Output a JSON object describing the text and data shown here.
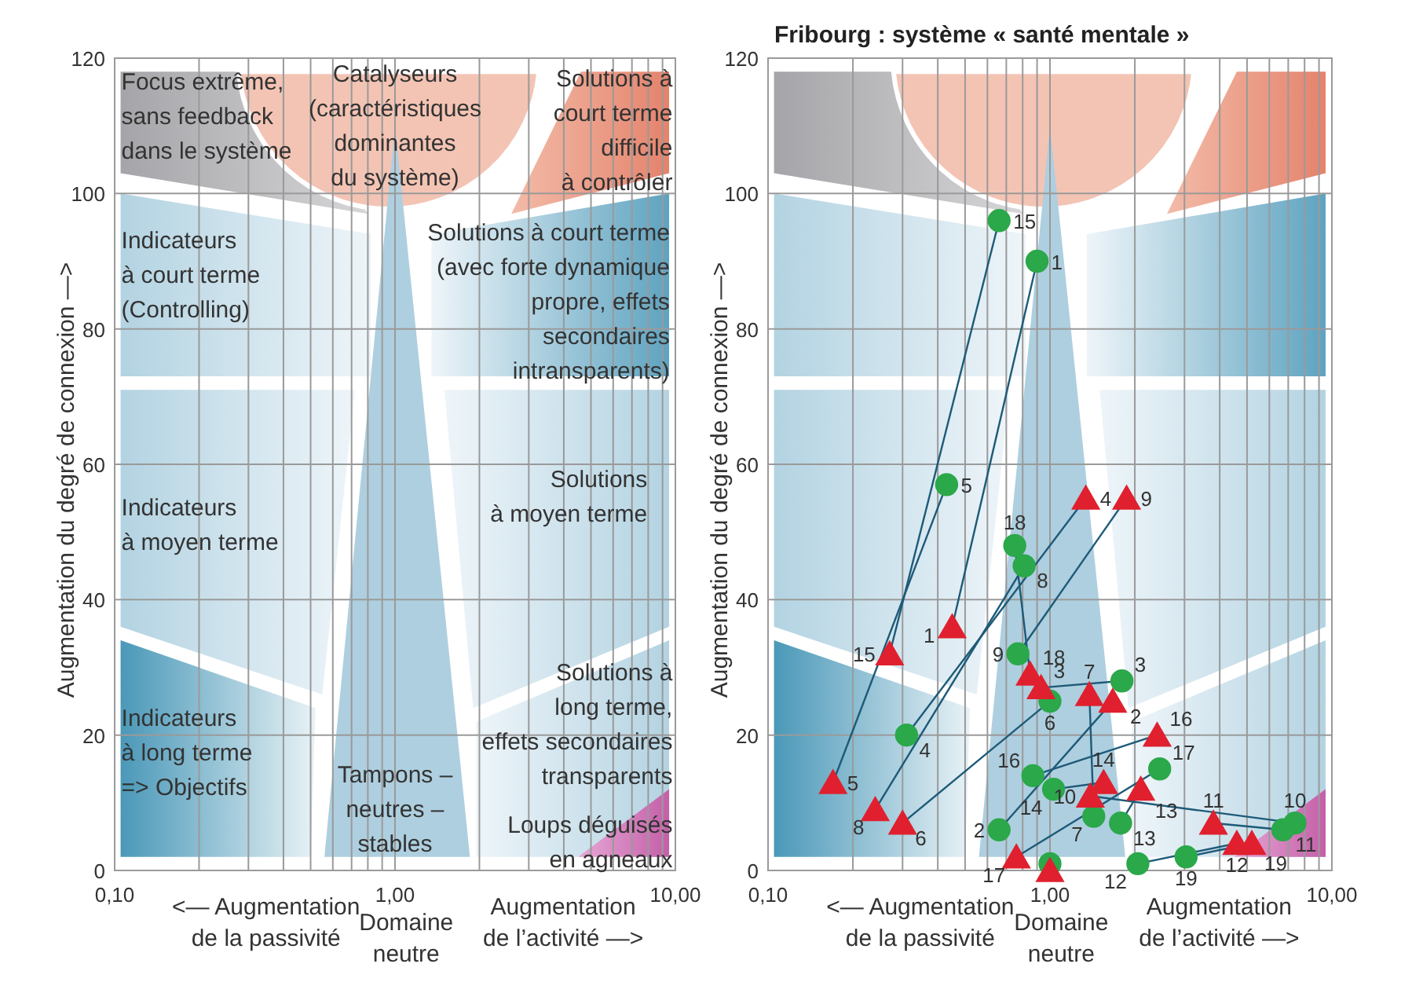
{
  "chart_data": [
    {
      "type": "scatter",
      "ylabel": "Augmentation du degré de connexion —>",
      "xlim": [
        0.1,
        10
      ],
      "ylim": [
        0,
        120
      ],
      "log": "x",
      "grid": true,
      "xticks": [
        {
          "value": 0.1,
          "label": "0,10"
        },
        {
          "value": 0.2,
          "label": null
        },
        {
          "value": 0.3,
          "label": null
        },
        {
          "value": 0.4,
          "label": null
        },
        {
          "value": 0.5,
          "label": null
        },
        {
          "value": 0.6,
          "label": null
        },
        {
          "value": 0.7,
          "label": null
        },
        {
          "value": 0.8,
          "label": null
        },
        {
          "value": 0.9,
          "label": null
        },
        {
          "value": 1,
          "label": "1,00"
        },
        {
          "value": 2,
          "label": null
        },
        {
          "value": 3,
          "label": null
        },
        {
          "value": 4,
          "label": null
        },
        {
          "value": 5,
          "label": null
        },
        {
          "value": 6,
          "label": null
        },
        {
          "value": 7,
          "label": null
        },
        {
          "value": 8,
          "label": null
        },
        {
          "value": 9,
          "label": null
        },
        {
          "value": 10,
          "label": "10,00"
        }
      ],
      "yticks": [
        0,
        20,
        40,
        60,
        80,
        100,
        120
      ],
      "annotations": [
        "Focus extrême,\nsans feedback\ndans le système",
        "Catalyseurs\n(caractéristiques\ndominantes\ndu système)",
        "Solutions à\ncourt terme\ndifficile\nà contrôler",
        "Indicateurs\nà court terme\n(Controlling)",
        "Solutions à court terme\n(avec forte dynamique\npropre, effets\nsecondaires\nintransparents)",
        "Indicateurs\nà moyen terme",
        "Solutions\nà moyen terme",
        "Indicateurs\nà long terme\n=> Objectifs",
        "Solutions à\nlong terme,\neffets secondaires\ntransparents",
        "Tampons –\nneutres –\nstables",
        "Loups déguisés\nen agneaux",
        "<— Augmentation\nde la passivité",
        "Domaine\nneutre",
        "Augmentation\nde l’activité —>"
      ]
    },
    {
      "type": "scatter",
      "title": "Fribourg : système « santé mentale »",
      "ylabel": "Augmentation du degré de connexion —>",
      "xlim": [
        0.1,
        10
      ],
      "ylim": [
        0,
        120
      ],
      "log": "x",
      "grid": true,
      "xticks": [
        {
          "value": 0.1,
          "label": "0,10"
        },
        {
          "value": 0.2,
          "label": null
        },
        {
          "value": 0.3,
          "label": null
        },
        {
          "value": 0.4,
          "label": null
        },
        {
          "value": 0.5,
          "label": null
        },
        {
          "value": 0.6,
          "label": null
        },
        {
          "value": 0.7,
          "label": null
        },
        {
          "value": 0.8,
          "label": null
        },
        {
          "value": 0.9,
          "label": null
        },
        {
          "value": 1,
          "label": "1,00"
        },
        {
          "value": 2,
          "label": null
        },
        {
          "value": 3,
          "label": null
        },
        {
          "value": 4,
          "label": null
        },
        {
          "value": 5,
          "label": null
        },
        {
          "value": 6,
          "label": null
        },
        {
          "value": 7,
          "label": null
        },
        {
          "value": 8,
          "label": null
        },
        {
          "value": 9,
          "label": null
        },
        {
          "value": 10,
          "label": "10,00"
        }
      ],
      "yticks": [
        0,
        20,
        40,
        60,
        80,
        100,
        120
      ],
      "series": [
        {
          "color": "#2aa84a",
          "marker": "circle",
          "x": [
            0.9,
            0.66,
            1.8,
            0.31,
            0.43,
            1.0,
            1.43,
            0.81,
            0.77,
            7.4,
            6.7,
            2.05,
            1.78,
            1.03,
            0.66,
            0.87,
            2.45,
            0.75,
            3.04,
            1.0
          ],
          "values": [
            90,
            6,
            28,
            20,
            57,
            25,
            8,
            45,
            32,
            7,
            6,
            1,
            7,
            12,
            96,
            14,
            15,
            48,
            2,
            1
          ]
        },
        {
          "color": "#e0202e",
          "marker": "triangle",
          "x": [
            0.45,
            1.67,
            0.93,
            1.34,
            0.17,
            0.3,
            1.38,
            0.24,
            1.87,
            1.39,
            3.8,
            4.6,
            2.1,
            1.55,
            0.27,
            2.4,
            0.76,
            0.85,
            5.2,
            1.0
          ],
          "values": [
            36,
            25,
            27,
            55,
            13,
            7,
            26,
            9,
            55,
            11,
            7,
            4,
            12,
            13,
            32,
            20,
            2,
            29,
            4,
            0
          ]
        }
      ],
      "annotations": [
        {
          "text": "1",
          "x": 0.9,
          "y": 90
        },
        {
          "text": "2",
          "x": 0.66,
          "y": 6
        },
        {
          "text": "3",
          "x": 1.8,
          "y": 28
        },
        {
          "text": "4",
          "x": 0.31,
          "y": 20
        },
        {
          "text": "5",
          "x": 0.43,
          "y": 57
        },
        {
          "text": "6",
          "x": 1.0,
          "y": 25
        },
        {
          "text": "7",
          "x": 1.43,
          "y": 8
        },
        {
          "text": "8",
          "x": 0.81,
          "y": 45
        },
        {
          "text": "9",
          "x": 0.77,
          "y": 32
        },
        {
          "text": "10",
          "x": 7.4,
          "y": 7
        },
        {
          "text": "11",
          "x": 6.7,
          "y": 6
        },
        {
          "text": "12",
          "x": 2.05,
          "y": 1
        },
        {
          "text": "13",
          "x": 1.78,
          "y": 7
        },
        {
          "text": "14",
          "x": 1.03,
          "y": 12
        },
        {
          "text": "15",
          "x": 0.66,
          "y": 96
        },
        {
          "text": "16",
          "x": 0.87,
          "y": 14
        },
        {
          "text": "17",
          "x": 2.45,
          "y": 15
        },
        {
          "text": "18",
          "x": 0.75,
          "y": 48
        },
        {
          "text": "19",
          "x": 3.04,
          "y": 2
        },
        {
          "text": "1",
          "x": 0.45,
          "y": 36
        },
        {
          "text": "2",
          "x": 1.67,
          "y": 25
        },
        {
          "text": "3",
          "x": 0.93,
          "y": 27
        },
        {
          "text": "4",
          "x": 1.34,
          "y": 55
        },
        {
          "text": "5",
          "x": 0.17,
          "y": 13
        },
        {
          "text": "6",
          "x": 0.3,
          "y": 7
        },
        {
          "text": "7",
          "x": 1.38,
          "y": 26
        },
        {
          "text": "8",
          "x": 0.24,
          "y": 9
        },
        {
          "text": "9",
          "x": 1.87,
          "y": 55
        },
        {
          "text": "10",
          "x": 1.39,
          "y": 11
        },
        {
          "text": "11",
          "x": 3.8,
          "y": 7
        },
        {
          "text": "12",
          "x": 4.6,
          "y": 4
        },
        {
          "text": "13",
          "x": 2.1,
          "y": 12
        },
        {
          "text": "14",
          "x": 1.55,
          "y": 13
        },
        {
          "text": "15",
          "x": 0.27,
          "y": 32
        },
        {
          "text": "16",
          "x": 2.4,
          "y": 20
        },
        {
          "text": "17",
          "x": 0.76,
          "y": 2
        },
        {
          "text": "18",
          "x": 0.85,
          "y": 29
        },
        {
          "text": "19",
          "x": 5.2,
          "y": 4
        },
        "<— Augmentation\nde la passivité",
        "Domaine\nneutre",
        "Augmentation\nde l’activité —>"
      ]
    }
  ]
}
